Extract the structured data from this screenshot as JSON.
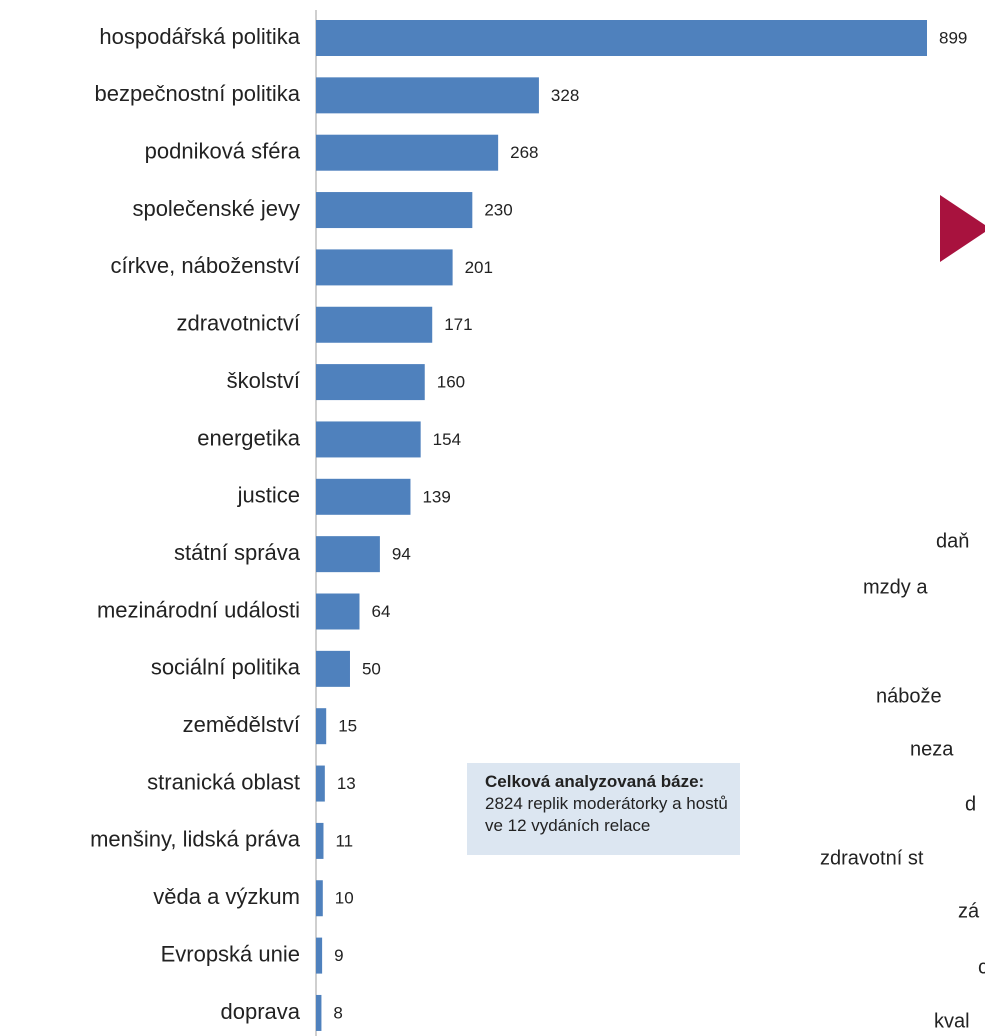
{
  "chart_data": {
    "type": "barh",
    "categories": [
      "hospodářská politika",
      "bezpečnostní politika",
      "podniková sféra",
      "společenské jevy",
      "církve, náboženství",
      "zdravotnictví",
      "školství",
      "energetika",
      "justice",
      "státní správa",
      "mezinárodní události",
      "sociální politika",
      "zemědělství",
      "stranická oblast",
      "menšiny, lidská práva",
      "věda a výzkum",
      "Evropská unie",
      "doprava"
    ],
    "values": [
      899,
      328,
      268,
      230,
      201,
      171,
      160,
      154,
      139,
      94,
      64,
      50,
      15,
      13,
      11,
      10,
      9,
      8
    ],
    "color": "#4f81bd"
  },
  "note": {
    "bold": "Celková analyzovaná báze:",
    "text": "2824 replik moderátorky a hostů ve 12 vydáních relace"
  },
  "side_labels": [
    "daň",
    "mzdy a",
    "nábože",
    "neza",
    "d",
    "zdravotní st",
    "zá",
    "c",
    "kval"
  ]
}
